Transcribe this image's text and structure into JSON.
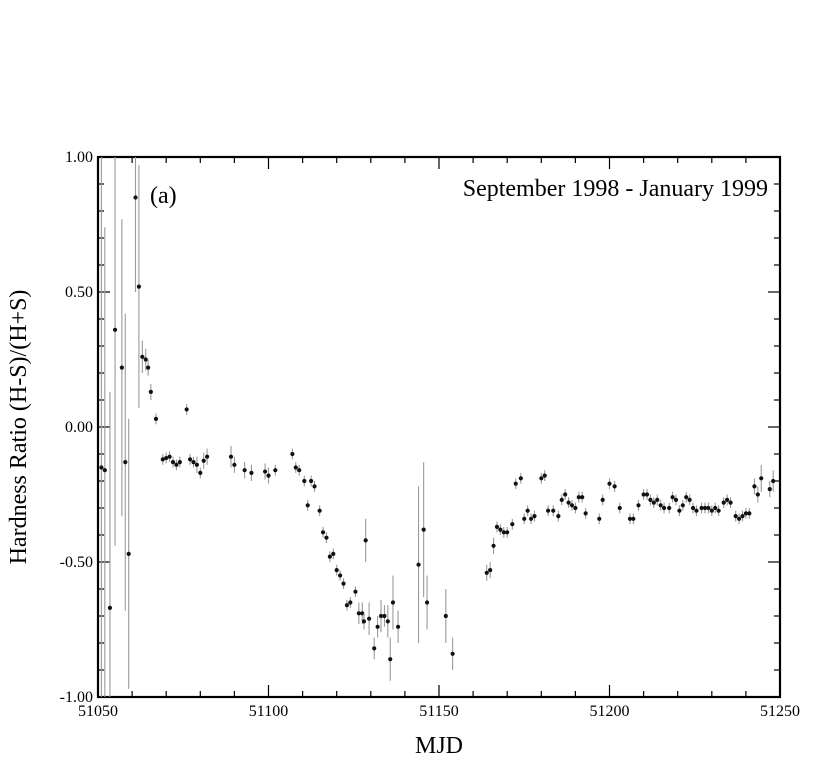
{
  "chart_data": {
    "type": "scatter",
    "title": "",
    "xlabel": "MJD",
    "ylabel": "Hardness Ratio (H-S)/(H+S)",
    "xlim": [
      51050,
      51250
    ],
    "ylim": [
      -1.0,
      1.0
    ],
    "x_ticks": [
      51050,
      51100,
      51150,
      51200,
      51250
    ],
    "x_tick_labels": [
      "51050",
      "51100",
      "51150",
      "51200",
      "51250"
    ],
    "y_ticks": [
      1.0,
      0.5,
      0.0,
      -0.5,
      -1.0
    ],
    "y_tick_labels": [
      "1.00",
      "0.50",
      "0.00",
      "-0.50",
      "-1.00"
    ],
    "grid": false,
    "annotations": {
      "panel_label": "(a)",
      "period": "September 1998 - January 1999"
    },
    "series": [
      {
        "points": [
          [
            51051.0,
            -0.15,
            1.2
          ],
          [
            51052.0,
            -0.16,
            0.9
          ],
          [
            51053.5,
            -0.67,
            0.8
          ],
          [
            51055.0,
            0.36,
            0.8
          ],
          [
            51057.0,
            0.22,
            0.55
          ],
          [
            51058.0,
            -0.13,
            0.55
          ],
          [
            51059.0,
            -0.47,
            0.5
          ],
          [
            51061.0,
            0.85,
            0.35
          ],
          [
            51062.0,
            0.52,
            0.45
          ],
          [
            51063.0,
            0.26,
            0.06
          ],
          [
            51064.0,
            0.25,
            0.04
          ],
          [
            51064.7,
            0.22,
            0.03
          ],
          [
            51065.5,
            0.13,
            0.03
          ],
          [
            51067.0,
            0.03,
            0.02
          ],
          [
            51069.0,
            -0.12,
            0.02
          ],
          [
            51070.0,
            -0.115,
            0.02
          ],
          [
            51071.0,
            -0.11,
            0.02
          ],
          [
            51072.0,
            -0.13,
            0.02
          ],
          [
            51073.0,
            -0.14,
            0.02
          ],
          [
            51074.0,
            -0.13,
            0.02
          ],
          [
            51076.0,
            0.065,
            0.02
          ],
          [
            51077.0,
            -0.12,
            0.02
          ],
          [
            51078.0,
            -0.13,
            0.02
          ],
          [
            51079.0,
            -0.14,
            0.03
          ],
          [
            51080.0,
            -0.17,
            0.02
          ],
          [
            51081.0,
            -0.125,
            0.03
          ],
          [
            51082.0,
            -0.11,
            0.03
          ],
          [
            51089.0,
            -0.11,
            0.04
          ],
          [
            51090.0,
            -0.14,
            0.03
          ],
          [
            51093.0,
            -0.16,
            0.03
          ],
          [
            51095.0,
            -0.17,
            0.03
          ],
          [
            51099.0,
            -0.165,
            0.03
          ],
          [
            51100.0,
            -0.18,
            0.03
          ],
          [
            51102.0,
            -0.16,
            0.02
          ],
          [
            51107.0,
            -0.1,
            0.02
          ],
          [
            51108.0,
            -0.15,
            0.02
          ],
          [
            51109.0,
            -0.16,
            0.02
          ],
          [
            51110.5,
            -0.2,
            0.02
          ],
          [
            51111.5,
            -0.29,
            0.02
          ],
          [
            51112.5,
            -0.2,
            0.02
          ],
          [
            51113.5,
            -0.22,
            0.02
          ],
          [
            51115.0,
            -0.31,
            0.02
          ],
          [
            51116.0,
            -0.39,
            0.02
          ],
          [
            51117.0,
            -0.41,
            0.02
          ],
          [
            51118.0,
            -0.48,
            0.02
          ],
          [
            51119.0,
            -0.47,
            0.02
          ],
          [
            51120.0,
            -0.53,
            0.02
          ],
          [
            51121.0,
            -0.55,
            0.02
          ],
          [
            51122.0,
            -0.58,
            0.02
          ],
          [
            51123.0,
            -0.66,
            0.02
          ],
          [
            51124.0,
            -0.65,
            0.02
          ],
          [
            51125.5,
            -0.61,
            0.02
          ],
          [
            51126.5,
            -0.69,
            0.04
          ],
          [
            51127.5,
            -0.69,
            0.04
          ],
          [
            51128.0,
            -0.72,
            0.03
          ],
          [
            51128.5,
            -0.42,
            0.08
          ],
          [
            51129.5,
            -0.71,
            0.06
          ],
          [
            51131.0,
            -0.82,
            0.04
          ],
          [
            51132.0,
            -0.74,
            0.04
          ],
          [
            51133.0,
            -0.7,
            0.06
          ],
          [
            51134.0,
            -0.7,
            0.04
          ],
          [
            51135.0,
            -0.72,
            0.06
          ],
          [
            51135.7,
            -0.86,
            0.08
          ],
          [
            51136.5,
            -0.65,
            0.1
          ],
          [
            51138.0,
            -0.74,
            0.06
          ],
          [
            51144.0,
            -0.51,
            0.29
          ],
          [
            51145.5,
            -0.38,
            0.25
          ],
          [
            51146.5,
            -0.65,
            0.1
          ],
          [
            51152.0,
            -0.7,
            0.1
          ],
          [
            51154.0,
            -0.84,
            0.06
          ],
          [
            51164.0,
            -0.54,
            0.03
          ],
          [
            51165.0,
            -0.53,
            0.03
          ],
          [
            51166.0,
            -0.44,
            0.03
          ],
          [
            51167.0,
            -0.37,
            0.02
          ],
          [
            51168.0,
            -0.38,
            0.02
          ],
          [
            51169.0,
            -0.39,
            0.02
          ],
          [
            51170.0,
            -0.39,
            0.02
          ],
          [
            51171.5,
            -0.36,
            0.02
          ],
          [
            51172.5,
            -0.21,
            0.02
          ],
          [
            51174.0,
            -0.19,
            0.02
          ],
          [
            51175.0,
            -0.34,
            0.02
          ],
          [
            51176.0,
            -0.31,
            0.02
          ],
          [
            51177.0,
            -0.34,
            0.02
          ],
          [
            51178.0,
            -0.33,
            0.02
          ],
          [
            51180.0,
            -0.19,
            0.02
          ],
          [
            51181.0,
            -0.18,
            0.02
          ],
          [
            51182.0,
            -0.31,
            0.02
          ],
          [
            51183.5,
            -0.31,
            0.02
          ],
          [
            51185.0,
            -0.33,
            0.02
          ],
          [
            51186.0,
            -0.27,
            0.02
          ],
          [
            51187.0,
            -0.25,
            0.02
          ],
          [
            51188.0,
            -0.28,
            0.02
          ],
          [
            51189.0,
            -0.29,
            0.02
          ],
          [
            51190.0,
            -0.3,
            0.02
          ],
          [
            51191.0,
            -0.26,
            0.02
          ],
          [
            51192.0,
            -0.26,
            0.02
          ],
          [
            51193.0,
            -0.32,
            0.02
          ],
          [
            51197.0,
            -0.34,
            0.02
          ],
          [
            51198.0,
            -0.27,
            0.02
          ],
          [
            51200.0,
            -0.21,
            0.02
          ],
          [
            51201.5,
            -0.22,
            0.02
          ],
          [
            51203.0,
            -0.3,
            0.02
          ],
          [
            51206.0,
            -0.34,
            0.02
          ],
          [
            51207.0,
            -0.34,
            0.02
          ],
          [
            51208.5,
            -0.29,
            0.02
          ],
          [
            51210.0,
            -0.25,
            0.02
          ],
          [
            51211.0,
            -0.25,
            0.02
          ],
          [
            51212.0,
            -0.27,
            0.02
          ],
          [
            51213.0,
            -0.28,
            0.02
          ],
          [
            51214.0,
            -0.27,
            0.02
          ],
          [
            51215.0,
            -0.29,
            0.02
          ],
          [
            51216.0,
            -0.3,
            0.02
          ],
          [
            51217.5,
            -0.3,
            0.02
          ],
          [
            51218.5,
            -0.26,
            0.02
          ],
          [
            51219.5,
            -0.27,
            0.02
          ],
          [
            51220.5,
            -0.31,
            0.02
          ],
          [
            51221.5,
            -0.29,
            0.02
          ],
          [
            51222.5,
            -0.26,
            0.02
          ],
          [
            51223.5,
            -0.27,
            0.02
          ],
          [
            51224.5,
            -0.3,
            0.02
          ],
          [
            51225.5,
            -0.31,
            0.02
          ],
          [
            51227.0,
            -0.3,
            0.02
          ],
          [
            51228.0,
            -0.3,
            0.02
          ],
          [
            51229.0,
            -0.3,
            0.02
          ],
          [
            51230.0,
            -0.31,
            0.02
          ],
          [
            51231.0,
            -0.3,
            0.02
          ],
          [
            51232.0,
            -0.31,
            0.02
          ],
          [
            51233.5,
            -0.28,
            0.02
          ],
          [
            51234.5,
            -0.27,
            0.02
          ],
          [
            51235.5,
            -0.28,
            0.02
          ],
          [
            51237.0,
            -0.33,
            0.02
          ],
          [
            51238.0,
            -0.34,
            0.02
          ],
          [
            51239.0,
            -0.33,
            0.02
          ],
          [
            51240.0,
            -0.32,
            0.02
          ],
          [
            51241.0,
            -0.32,
            0.02
          ],
          [
            51242.5,
            -0.22,
            0.03
          ],
          [
            51243.5,
            -0.25,
            0.03
          ],
          [
            51244.5,
            -0.19,
            0.05
          ],
          [
            51247.0,
            -0.23,
            0.03
          ],
          [
            51248.0,
            -0.2,
            0.04
          ]
        ]
      }
    ]
  }
}
